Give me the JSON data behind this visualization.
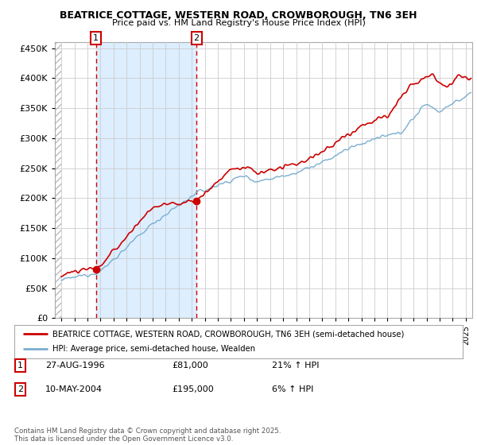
{
  "title": "BEATRICE COTTAGE, WESTERN ROAD, CROWBOROUGH, TN6 3EH",
  "subtitle": "Price paid vs. HM Land Registry's House Price Index (HPI)",
  "legend_line1": "BEATRICE COTTAGE, WESTERN ROAD, CROWBOROUGH, TN6 3EH (semi-detached house)",
  "legend_line2": "HPI: Average price, semi-detached house, Wealden",
  "footnote": "Contains HM Land Registry data © Crown copyright and database right 2025.\nThis data is licensed under the Open Government Licence v3.0.",
  "red_color": "#cc0000",
  "blue_color": "#7aadcf",
  "shade_color": "#ddeeff",
  "hatch_color": "#cccccc",
  "grid_color": "#cccccc",
  "bg_color": "#ffffff",
  "ylim": [
    0,
    460000
  ],
  "yticks": [
    0,
    50000,
    100000,
    150000,
    200000,
    250000,
    300000,
    350000,
    400000,
    450000
  ],
  "xlim_start": 1993.5,
  "xlim_end": 2025.5,
  "hatch_end": 1994.0,
  "sale1_x": 1996.65,
  "sale1_y": 81000,
  "sale1_label": "1",
  "sale2_x": 2004.36,
  "sale2_y": 195000,
  "sale2_label": "2",
  "table_data": [
    [
      "1",
      "27-AUG-1996",
      "£81,000",
      "21% ↑ HPI"
    ],
    [
      "2",
      "10-MAY-2004",
      "£195,000",
      "6% ↑ HPI"
    ]
  ]
}
